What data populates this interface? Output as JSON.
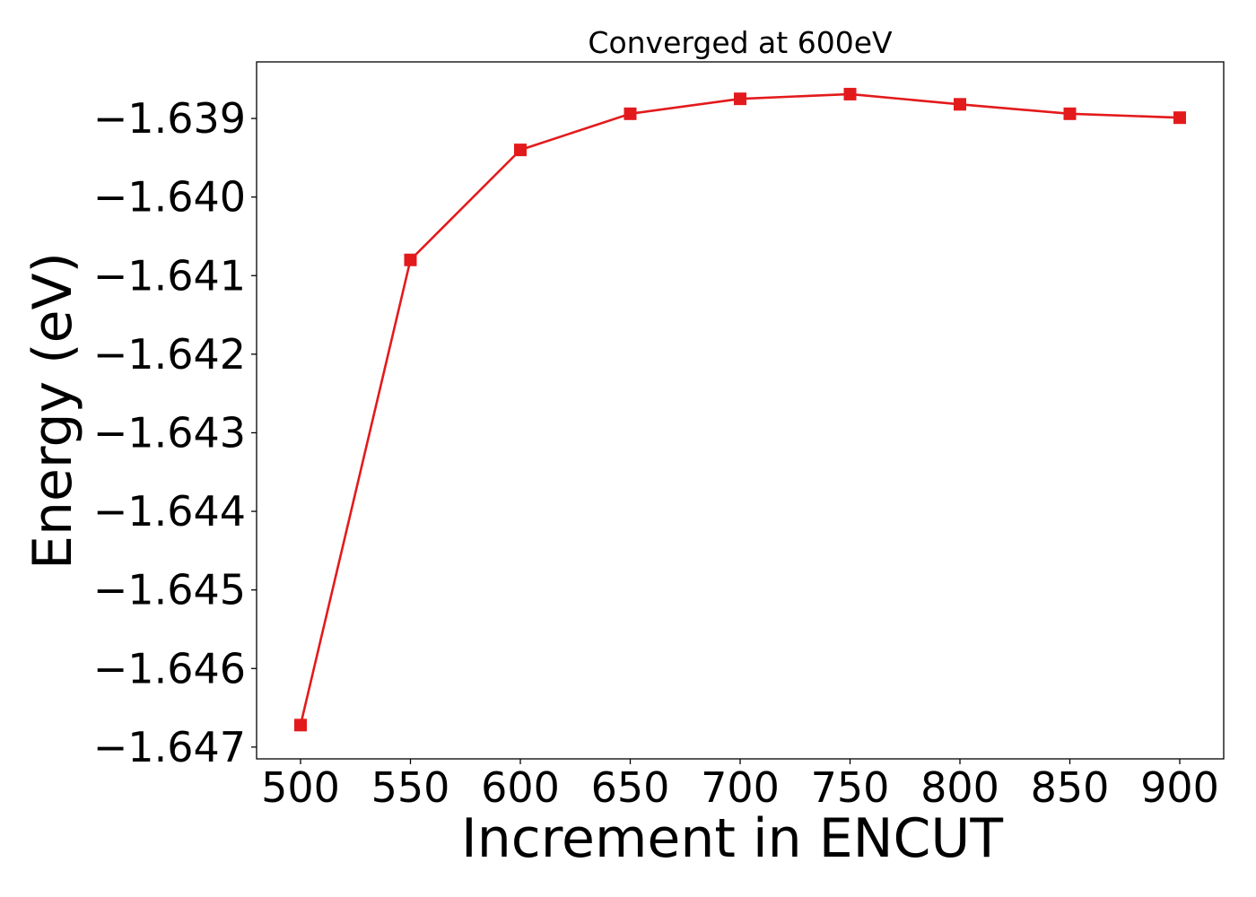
{
  "chart_data": {
    "type": "line",
    "title": "Converged at 600eV",
    "xlabel": "Increment in ENCUT",
    "ylabel": "Energy (eV)",
    "x": [
      500,
      550,
      600,
      650,
      700,
      750,
      800,
      850,
      900
    ],
    "series": [
      {
        "values": [
          -1.64672,
          -1.6408,
          -1.6394,
          -1.63894,
          -1.63875,
          -1.63869,
          -1.63882,
          -1.63894,
          -1.63899
        ],
        "color": "#e31a1c",
        "marker": "square"
      }
    ],
    "xlim": [
      480,
      920
    ],
    "ylim": [
      -1.64715,
      -1.63828
    ],
    "xticks": [
      500,
      550,
      600,
      650,
      700,
      750,
      800,
      850,
      900
    ],
    "xtick_labels": [
      "500",
      "550",
      "600",
      "650",
      "700",
      "750",
      "800",
      "850",
      "900"
    ],
    "yticks": [
      -1.647,
      -1.646,
      -1.645,
      -1.644,
      -1.643,
      -1.642,
      -1.641,
      -1.64,
      -1.639
    ],
    "ytick_labels": [
      "−1.647",
      "−1.646",
      "−1.645",
      "−1.644",
      "−1.643",
      "−1.642",
      "−1.641",
      "−1.640",
      "−1.639"
    ],
    "grid": false,
    "legend": "none"
  }
}
